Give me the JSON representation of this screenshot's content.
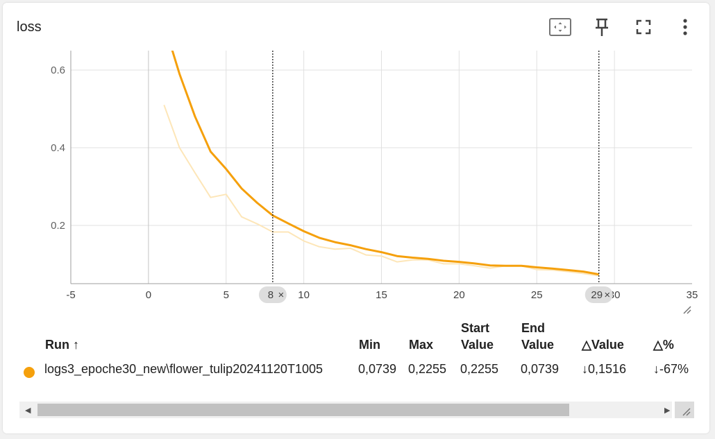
{
  "card": {
    "title": "loss"
  },
  "toolbar": {
    "fit_icon": "fit-to-data-icon",
    "pin_icon": "pin-icon",
    "fullscreen_icon": "fullscreen-icon",
    "menu_icon": "more-vert-icon"
  },
  "chart_data": {
    "type": "line",
    "title": "",
    "xlim": [
      -5,
      35
    ],
    "ylim": [
      0.05,
      0.65
    ],
    "yticks": [
      0.2,
      0.4,
      0.6
    ],
    "ytick_labels": [
      "0.2",
      "0.4",
      "0.6"
    ],
    "xticks": [
      -5,
      0,
      5,
      10,
      15,
      20,
      25,
      30,
      35
    ],
    "xtick_labels": [
      "-5",
      "0",
      "5",
      "10",
      "15",
      "20",
      "25",
      "30",
      "35"
    ],
    "grid": true,
    "series": [
      {
        "name": "logs3_epoche30_new\\flower_tulip20241120T1005 (smoothed)",
        "color": "#f5a00c",
        "x": [
          1,
          2,
          3,
          4,
          5,
          6,
          7,
          8,
          9,
          10,
          11,
          12,
          13,
          14,
          15,
          16,
          17,
          18,
          19,
          20,
          21,
          22,
          23,
          24,
          25,
          26,
          27,
          28,
          29
        ],
        "y": [
          0.72,
          0.59,
          0.48,
          0.39,
          0.345,
          0.295,
          0.258,
          0.2255,
          0.205,
          0.185,
          0.168,
          0.157,
          0.149,
          0.139,
          0.131,
          0.121,
          0.117,
          0.114,
          0.109,
          0.106,
          0.102,
          0.097,
          0.096,
          0.096,
          0.092,
          0.089,
          0.085,
          0.081,
          0.0739
        ]
      },
      {
        "name": "logs3_epoche30_new\\flower_tulip20241120T1005 (raw)",
        "color": "#fde6b8",
        "x": [
          1,
          2,
          3,
          4,
          5,
          6,
          7,
          8,
          9,
          10,
          11,
          12,
          13,
          14,
          15,
          16,
          17,
          18,
          19,
          20,
          21,
          22,
          23,
          24,
          25,
          26,
          27,
          28,
          29
        ],
        "y": [
          0.51,
          0.4,
          0.335,
          0.272,
          0.28,
          0.222,
          0.204,
          0.183,
          0.183,
          0.16,
          0.145,
          0.139,
          0.141,
          0.124,
          0.121,
          0.106,
          0.111,
          0.111,
          0.101,
          0.101,
          0.096,
          0.09,
          0.096,
          0.096,
          0.086,
          0.085,
          0.081,
          0.076,
          0.07
        ]
      }
    ],
    "markers": [
      {
        "x": 8,
        "label": "8",
        "close": "×"
      },
      {
        "x": 29,
        "label": "29",
        "close": "×"
      }
    ]
  },
  "table": {
    "headers": {
      "run": "Run ↑",
      "min": "Min",
      "max": "Max",
      "start_1": "Start",
      "start_2": "Value",
      "end_1": "End",
      "end_2": "Value",
      "dvalue": "△Value",
      "dpct": "△%"
    },
    "row": {
      "color": "#f5a00c",
      "run": "logs3_epoche30_new\\flower_tulip20241120T1005",
      "min": "0,0739",
      "max": "0,2255",
      "start": "0,2255",
      "end": "0,0739",
      "dvalue": "↓0,1516",
      "dpct": "↓-67%"
    }
  },
  "scrollbar": {
    "left_arrow": "◀",
    "right_arrow": "▶"
  }
}
